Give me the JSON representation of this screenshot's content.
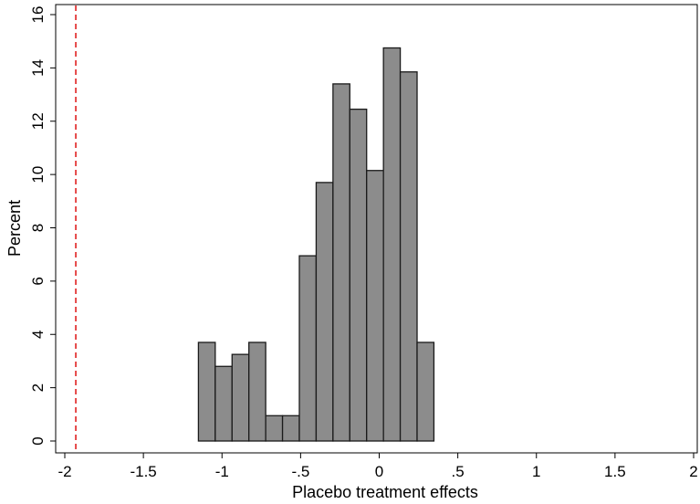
{
  "chart_data": {
    "type": "bar",
    "subtype": "histogram",
    "title": "",
    "xlabel": "Placebo treatment effects",
    "ylabel": "Percent",
    "xlim": [
      -2.05,
      2.05
    ],
    "ylim": [
      0,
      16
    ],
    "xticks": [
      -2,
      -1.5,
      -1,
      -0.5,
      0,
      0.5,
      1,
      1.5,
      2
    ],
    "xtick_labels": [
      "-2",
      "-1.5",
      "-1",
      "-.5",
      "0",
      ".5",
      "1",
      "1.5",
      "2"
    ],
    "yticks": [
      0,
      2,
      4,
      6,
      8,
      10,
      12,
      14,
      16
    ],
    "ytick_labels": [
      "0",
      "2",
      "4",
      "6",
      "8",
      "10",
      "12",
      "14",
      "16"
    ],
    "bin_start": -1.15,
    "bin_width": 0.107,
    "values": [
      3.7,
      2.8,
      3.25,
      3.7,
      0.95,
      0.95,
      6.95,
      9.7,
      13.4,
      12.45,
      10.15,
      14.75,
      13.85,
      3.7
    ],
    "reference_line": {
      "x": -1.93,
      "style": "dashed",
      "color": "#e02020"
    },
    "bar_fill": "#8c8c8c",
    "bar_stroke": "#1a1a1a",
    "grid": false,
    "legend": "none"
  }
}
